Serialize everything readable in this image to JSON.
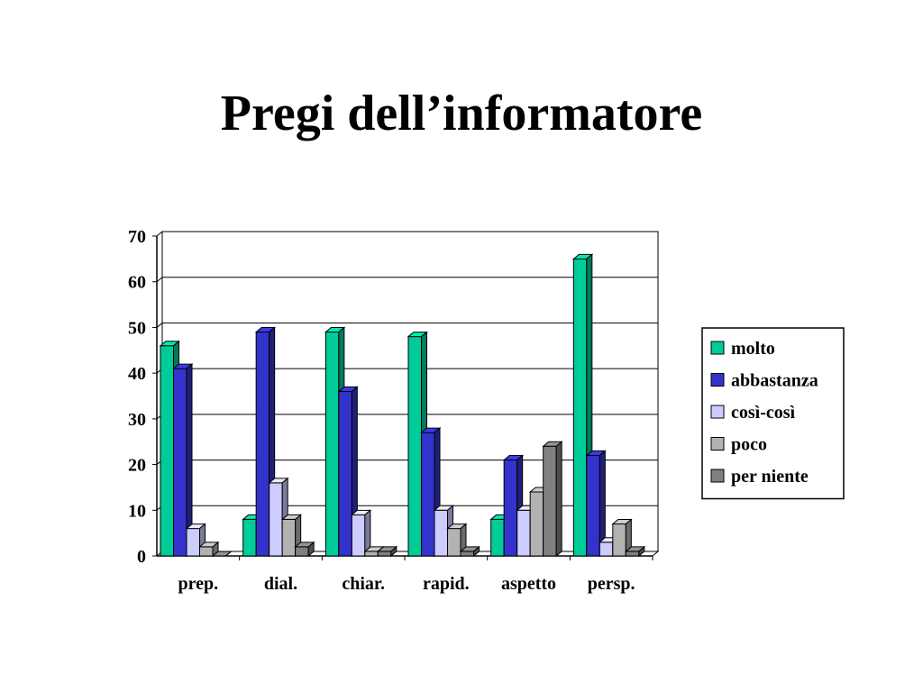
{
  "slide": {
    "title": "Pregi dell’informatore"
  },
  "chart_data": {
    "type": "bar",
    "title": "",
    "xlabel": "",
    "ylabel": "",
    "ylim": [
      0,
      70
    ],
    "yticks": [
      0,
      10,
      20,
      30,
      40,
      50,
      60,
      70
    ],
    "grid": true,
    "three_d": true,
    "legend_position": "right",
    "categories": [
      "prep.",
      "dial.",
      "chiar.",
      "rapid.",
      "aspetto",
      "persp."
    ],
    "series": [
      {
        "name": "molto",
        "color": "#00cc99",
        "values": [
          46,
          8,
          49,
          48,
          8,
          65
        ]
      },
      {
        "name": "abbastanza",
        "color": "#3333cc",
        "values": [
          41,
          49,
          36,
          27,
          21,
          22
        ]
      },
      {
        "name": "così-così",
        "color": "#ccccff",
        "values": [
          6,
          16,
          9,
          10,
          10,
          3
        ]
      },
      {
        "name": "poco",
        "color": "#b2b2b2",
        "values": [
          2,
          8,
          1,
          6,
          14,
          7
        ]
      },
      {
        "name": "per niente",
        "color": "#808080",
        "values": [
          0,
          2,
          1,
          1,
          24,
          1
        ]
      }
    ]
  }
}
